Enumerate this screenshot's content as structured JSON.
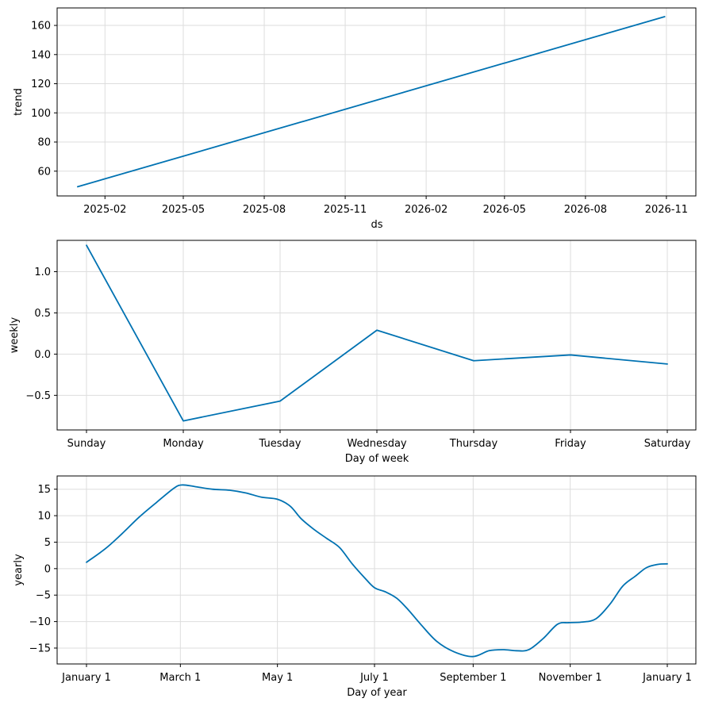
{
  "chart_data": [
    {
      "type": "line",
      "xlabel": "ds",
      "ylabel": "trend",
      "x_ticks": [
        "2025-02",
        "2025-05",
        "2025-08",
        "2025-11",
        "2026-02",
        "2026-05",
        "2026-08",
        "2026-11"
      ],
      "y_ticks": [
        "60",
        "80",
        "100",
        "120",
        "140",
        "160"
      ],
      "y_tick_values": [
        60,
        80,
        100,
        120,
        140,
        160
      ],
      "ylim": [
        43,
        172
      ],
      "x_range": [
        "2025-01-11",
        "2026-11-02"
      ],
      "grid": true,
      "color": "#0072B2",
      "series": [
        {
          "x": [
            "2025-01-01",
            "2025-04-01",
            "2025-07-01",
            "2025-10-01",
            "2026-01-01",
            "2026-04-01",
            "2026-07-01",
            "2026-10-01",
            "2026-10-30"
          ],
          "values": [
            49.3,
            66.9,
            84.7,
            102.5,
            120.4,
            138.0,
            155.8,
            173.5,
            166.0
          ]
        }
      ]
    },
    {
      "type": "line",
      "xlabel": "Day of week",
      "ylabel": "weekly",
      "categories": [
        "Sunday",
        "Monday",
        "Tuesday",
        "Wednesday",
        "Thursday",
        "Friday",
        "Saturday"
      ],
      "y_ticks": [
        "−0.5",
        "0.0",
        "0.5",
        "1.0"
      ],
      "y_tick_values": [
        -0.5,
        0.0,
        0.5,
        1.0
      ],
      "ylim": [
        -0.92,
        1.38
      ],
      "grid": true,
      "color": "#0072B2",
      "series": [
        {
          "values": [
            1.32,
            -0.81,
            -0.57,
            0.29,
            -0.08,
            -0.01,
            -0.12
          ]
        }
      ]
    },
    {
      "type": "line",
      "xlabel": "Day of year",
      "ylabel": "yearly",
      "x_ticks": [
        "January 1",
        "March 1",
        "May 1",
        "July 1",
        "September 1",
        "November 1",
        "January 1"
      ],
      "x_tick_days": [
        0,
        59,
        120,
        181,
        243,
        304,
        365
      ],
      "y_ticks": [
        "−15",
        "−10",
        "−5",
        "0",
        "5",
        "10",
        "15"
      ],
      "y_tick_values": [
        -15,
        -10,
        -5,
        0,
        5,
        10,
        15
      ],
      "ylim": [
        -18,
        17.5
      ],
      "x_range": [
        -18,
        383
      ],
      "grid": true,
      "color": "#0072B2",
      "series": [
        {
          "x": [
            0,
            12,
            22,
            33,
            44,
            55,
            60,
            68,
            79,
            90,
            100,
            110,
            120,
            128,
            135,
            143,
            151,
            159,
            167,
            175,
            181,
            188,
            195,
            202,
            210,
            220,
            231,
            243,
            253,
            262,
            270,
            278,
            287,
            296,
            303,
            311,
            320,
            329,
            337,
            345,
            352,
            359,
            365
          ],
          "values": [
            1.2,
            3.8,
            6.5,
            9.7,
            12.5,
            15.2,
            15.8,
            15.5,
            15.0,
            14.8,
            14.3,
            13.5,
            13.1,
            11.8,
            9.4,
            7.4,
            5.7,
            4.0,
            0.9,
            -1.8,
            -3.6,
            -4.4,
            -5.6,
            -7.7,
            -10.5,
            -13.7,
            -15.7,
            -16.6,
            -15.5,
            -15.3,
            -15.5,
            -15.3,
            -13.2,
            -10.5,
            -10.2,
            -10.1,
            -9.5,
            -6.7,
            -3.3,
            -1.4,
            0.2,
            0.8,
            0.9
          ]
        }
      ]
    }
  ]
}
